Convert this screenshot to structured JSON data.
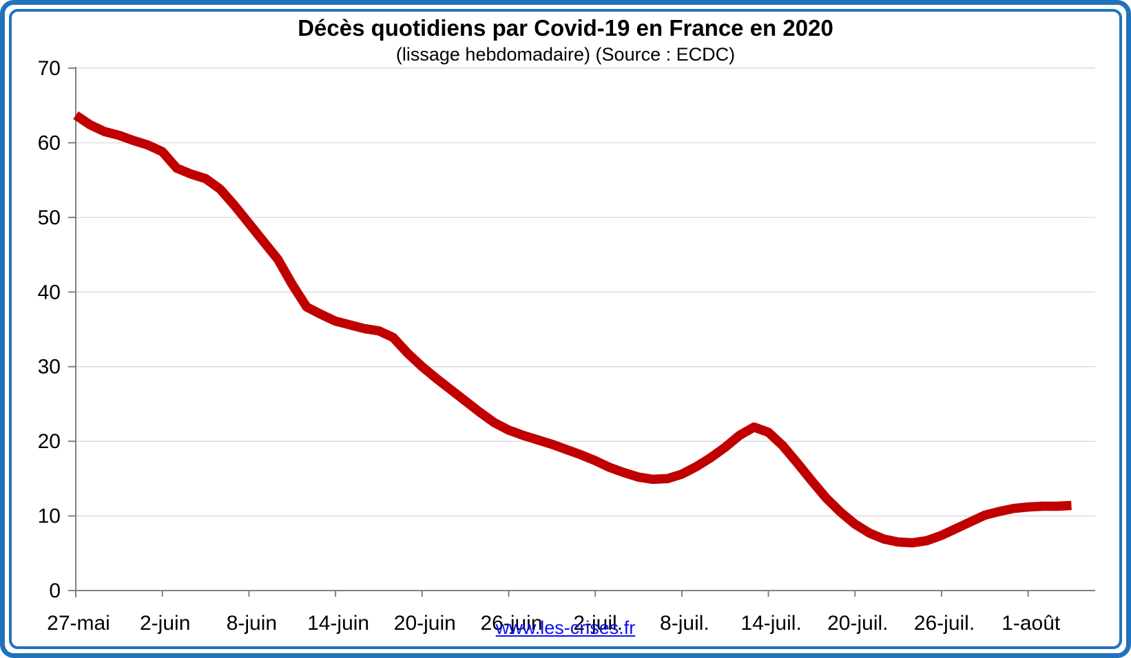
{
  "title": "Décès quotidiens par Covid-19 en France en 2020",
  "subtitle": "(lissage hebdomadaire) (Source : ECDC)",
  "footer_link": "www.les-crises.fr",
  "colors": {
    "line": "#C00000",
    "frame_border": "#2272B9",
    "gridline": "#D9D9D9",
    "axis": "#808080",
    "label_text": "#000000",
    "link": "#0D0DEF"
  },
  "chart_data": {
    "type": "line",
    "title": "Décès quotidiens par Covid-19 en France en 2020",
    "subtitle": "(lissage hebdomadaire) (Source : ECDC)",
    "xlabel": "",
    "ylabel": "",
    "ylim": [
      0,
      70
    ],
    "ytick_step": 10,
    "ytick_labels": [
      "0",
      "10",
      "20",
      "30",
      "40",
      "50",
      "60",
      "70"
    ],
    "grid": "horizontal",
    "legend": "none",
    "xtick_labels": [
      "27-mai",
      "2-juin",
      "8-juin",
      "14-juin",
      "20-juin",
      "26-juin",
      "2-juil.",
      "8-juil.",
      "14-juil.",
      "20-juil.",
      "26-juil.",
      "1-août"
    ],
    "xtick_interval": 6,
    "x": [
      "27-mai",
      "28-mai",
      "29-mai",
      "30-mai",
      "31-mai",
      "1-juin",
      "2-juin",
      "3-juin",
      "4-juin",
      "5-juin",
      "6-juin",
      "7-juin",
      "8-juin",
      "9-juin",
      "10-juin",
      "11-juin",
      "12-juin",
      "13-juin",
      "14-juin",
      "15-juin",
      "16-juin",
      "17-juin",
      "18-juin",
      "19-juin",
      "20-juin",
      "21-juin",
      "22-juin",
      "23-juin",
      "24-juin",
      "25-juin",
      "26-juin",
      "27-juin",
      "28-juin",
      "29-juin",
      "30-juin",
      "1-juil.",
      "2-juil.",
      "3-juil.",
      "4-juil.",
      "5-juil.",
      "6-juil.",
      "7-juil.",
      "8-juil.",
      "9-juil.",
      "10-juil.",
      "11-juil.",
      "12-juil.",
      "13-juil.",
      "14-juil.",
      "15-juil.",
      "16-juil.",
      "17-juil.",
      "18-juil.",
      "19-juil.",
      "20-juil.",
      "21-juil.",
      "22-juil.",
      "23-juil.",
      "24-juil.",
      "25-juil.",
      "26-juil.",
      "27-juil.",
      "28-juil.",
      "29-juil.",
      "30-juil.",
      "31-juil.",
      "1-août",
      "2-août",
      "3-août",
      "4-août"
    ],
    "series": [
      {
        "name": "Décès quotidiens par Covid-19 (lissage hebdomadaire)",
        "color": "#C00000",
        "values": [
          63.7,
          62.4,
          61.5,
          61.0,
          60.3,
          59.7,
          58.8,
          56.6,
          55.8,
          55.2,
          53.8,
          51.6,
          49.2,
          46.8,
          44.4,
          41.0,
          38.0,
          37.0,
          36.1,
          35.6,
          35.1,
          34.8,
          33.9,
          31.8,
          30.0,
          28.4,
          26.9,
          25.4,
          23.9,
          22.5,
          21.5,
          20.8,
          20.2,
          19.6,
          18.9,
          18.2,
          17.4,
          16.5,
          15.8,
          15.2,
          14.9,
          15.0,
          15.6,
          16.6,
          17.8,
          19.2,
          20.8,
          21.9,
          21.2,
          19.4,
          17.1,
          14.7,
          12.4,
          10.5,
          8.9,
          7.7,
          6.9,
          6.5,
          6.4,
          6.7,
          7.4,
          8.3,
          9.2,
          10.1,
          10.6,
          11.0,
          11.2,
          11.3,
          11.3,
          11.4
        ]
      }
    ]
  }
}
